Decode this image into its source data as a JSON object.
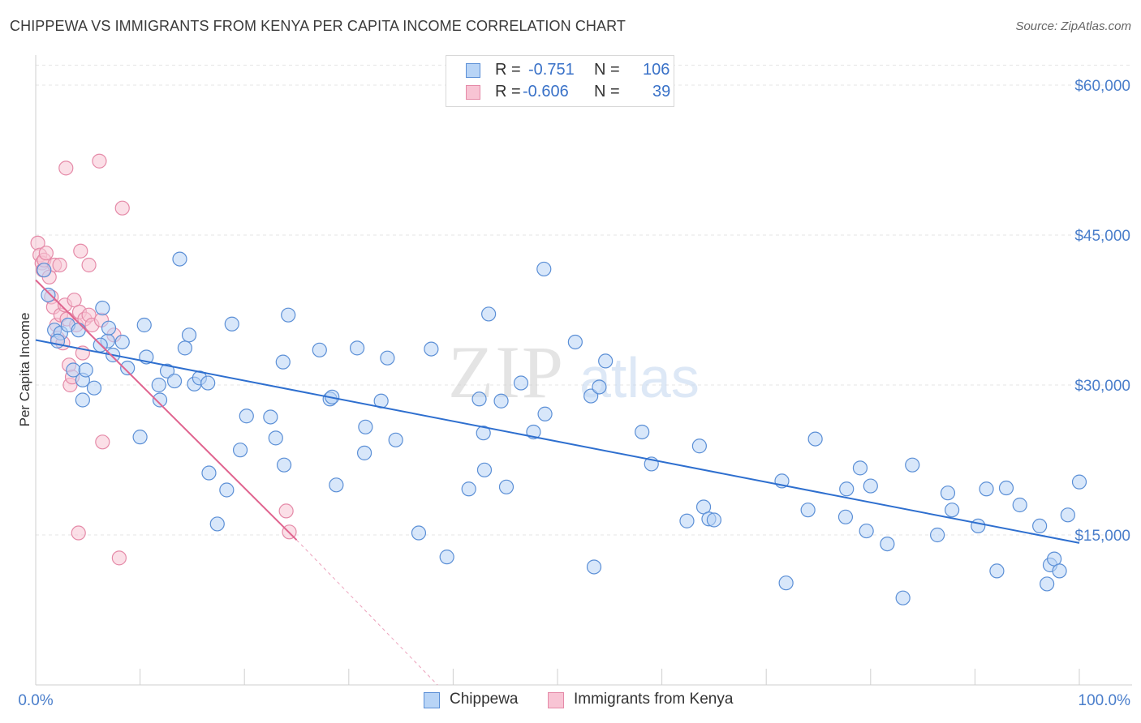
{
  "header": {
    "title": "CHIPPEWA VS IMMIGRANTS FROM KENYA PER CAPITA INCOME CORRELATION CHART",
    "source": "Source: ZipAtlas.com"
  },
  "legend": {
    "rows": [
      {
        "r_label": "R =",
        "r_value": "-0.751",
        "n_label": "N =",
        "n_value": "106"
      },
      {
        "r_label": "R =",
        "r_value": "-0.606",
        "n_label": "N =",
        "n_value": "39"
      }
    ]
  },
  "bottom_legend": [
    "Chippewa",
    "Immigrants from Kenya"
  ],
  "watermark": {
    "zip": "ZIP",
    "atlas": "atlas"
  },
  "colors": {
    "blue_fill": "#b8d4f6",
    "blue_stroke": "#5b8fd6",
    "blue_line": "#2e6fcf",
    "pink_fill": "#f8c4d4",
    "pink_stroke": "#e58aa8",
    "pink_line": "#e0648f",
    "axis_label": "#4a7ecb",
    "grid": "#e5e5e5"
  },
  "chart_data": {
    "type": "scatter",
    "title": "CHIPPEWA VS IMMIGRANTS FROM KENYA PER CAPITA INCOME CORRELATION CHART",
    "xlabel": "",
    "ylabel": "Per Capita Income",
    "xlim": [
      0,
      100
    ],
    "ylim": [
      0,
      63000
    ],
    "x_tick_labels": [
      "0.0%",
      "100.0%"
    ],
    "y_ticks": [
      15000,
      30000,
      45000,
      60000
    ],
    "y_tick_labels": [
      "$15,000",
      "$30,000",
      "$45,000",
      "$60,000"
    ],
    "grid": true,
    "legend_position": "top-center",
    "series": [
      {
        "name": "Chippewa",
        "r": -0.751,
        "n": 106,
        "trend": {
          "x": [
            0,
            100
          ],
          "y": [
            34500,
            14200
          ]
        },
        "points": [
          [
            0.8,
            41500
          ],
          [
            1.2,
            39000
          ],
          [
            1.8,
            35500
          ],
          [
            2.4,
            35200
          ],
          [
            3.1,
            36000
          ],
          [
            3.6,
            31500
          ],
          [
            4.1,
            35500
          ],
          [
            4.5,
            30500
          ],
          [
            4.5,
            28500
          ],
          [
            4.8,
            31500
          ],
          [
            6.4,
            37700
          ],
          [
            6.9,
            34400
          ],
          [
            7.0,
            35700
          ],
          [
            7.4,
            33000
          ],
          [
            8.3,
            34300
          ],
          [
            8.8,
            31700
          ],
          [
            10.0,
            24800
          ],
          [
            10.4,
            36000
          ],
          [
            10.6,
            32800
          ],
          [
            11.8,
            30000
          ],
          [
            11.9,
            28500
          ],
          [
            12.6,
            31400
          ],
          [
            13.3,
            30400
          ],
          [
            13.8,
            42600
          ],
          [
            14.3,
            33700
          ],
          [
            14.7,
            35000
          ],
          [
            15.2,
            30100
          ],
          [
            15.7,
            30700
          ],
          [
            16.5,
            30200
          ],
          [
            16.6,
            21200
          ],
          [
            17.4,
            16100
          ],
          [
            18.3,
            19500
          ],
          [
            18.8,
            36100
          ],
          [
            19.6,
            23500
          ],
          [
            20.2,
            26900
          ],
          [
            22.5,
            26800
          ],
          [
            23.0,
            24700
          ],
          [
            23.7,
            32300
          ],
          [
            23.8,
            22000
          ],
          [
            24.2,
            37000
          ],
          [
            27.2,
            33500
          ],
          [
            28.2,
            28600
          ],
          [
            28.4,
            28800
          ],
          [
            28.8,
            20000
          ],
          [
            30.8,
            33700
          ],
          [
            31.6,
            25800
          ],
          [
            31.5,
            23200
          ],
          [
            33.1,
            28400
          ],
          [
            33.7,
            32700
          ],
          [
            34.5,
            24500
          ],
          [
            36.7,
            15200
          ],
          [
            37.9,
            33600
          ],
          [
            39.4,
            12800
          ],
          [
            41.5,
            19600
          ],
          [
            42.5,
            28600
          ],
          [
            42.9,
            25200
          ],
          [
            43.0,
            21500
          ],
          [
            43.4,
            37100
          ],
          [
            44.6,
            28400
          ],
          [
            45.1,
            19800
          ],
          [
            46.5,
            30200
          ],
          [
            47.7,
            25300
          ],
          [
            48.7,
            41600
          ],
          [
            48.8,
            27100
          ],
          [
            51.7,
            34300
          ],
          [
            53.2,
            28900
          ],
          [
            53.5,
            11800
          ],
          [
            54.0,
            29800
          ],
          [
            54.6,
            32400
          ],
          [
            58.1,
            25300
          ],
          [
            59.0,
            22100
          ],
          [
            62.4,
            16400
          ],
          [
            63.6,
            23900
          ],
          [
            64.0,
            17800
          ],
          [
            64.5,
            16600
          ],
          [
            65.0,
            16500
          ],
          [
            71.5,
            20400
          ],
          [
            71.9,
            10200
          ],
          [
            74.0,
            17500
          ],
          [
            74.7,
            24600
          ],
          [
            77.6,
            16800
          ],
          [
            77.7,
            19600
          ],
          [
            79.0,
            21700
          ],
          [
            79.6,
            15400
          ],
          [
            80.0,
            19900
          ],
          [
            81.6,
            14100
          ],
          [
            83.1,
            8700
          ],
          [
            84.0,
            22000
          ],
          [
            86.4,
            15000
          ],
          [
            87.4,
            19200
          ],
          [
            87.8,
            17500
          ],
          [
            90.3,
            15900
          ],
          [
            91.1,
            19600
          ],
          [
            92.1,
            11400
          ],
          [
            93.0,
            19700
          ],
          [
            94.3,
            18000
          ],
          [
            96.2,
            15900
          ],
          [
            96.9,
            10100
          ],
          [
            97.2,
            12000
          ],
          [
            97.6,
            12600
          ],
          [
            98.1,
            11400
          ],
          [
            98.9,
            17000
          ],
          [
            100.0,
            20300
          ],
          [
            2.1,
            34400
          ],
          [
            6.2,
            34000
          ],
          [
            5.6,
            29700
          ]
        ]
      },
      {
        "name": "Immigrants from Kenya",
        "r": -0.606,
        "n": 39,
        "trend": {
          "x": [
            0,
            25
          ],
          "y": [
            40500,
            14500
          ]
        },
        "trend_dashed": {
          "x": [
            25,
            38.5
          ],
          "y": [
            14500,
            0
          ]
        },
        "points": [
          [
            0.2,
            44200
          ],
          [
            0.4,
            43000
          ],
          [
            0.6,
            42200
          ],
          [
            0.7,
            41500
          ],
          [
            0.8,
            42500
          ],
          [
            1.0,
            43200
          ],
          [
            1.3,
            40800
          ],
          [
            1.5,
            38800
          ],
          [
            1.7,
            37800
          ],
          [
            1.8,
            42000
          ],
          [
            2.0,
            36000
          ],
          [
            2.1,
            34700
          ],
          [
            2.3,
            42000
          ],
          [
            2.4,
            37000
          ],
          [
            2.6,
            34200
          ],
          [
            2.8,
            38000
          ],
          [
            3.0,
            36600
          ],
          [
            3.2,
            32000
          ],
          [
            3.3,
            30000
          ],
          [
            3.5,
            30800
          ],
          [
            3.7,
            38500
          ],
          [
            3.9,
            36000
          ],
          [
            4.1,
            15200
          ],
          [
            4.2,
            37300
          ],
          [
            4.3,
            43400
          ],
          [
            4.5,
            33200
          ],
          [
            4.7,
            36600
          ],
          [
            5.1,
            37000
          ],
          [
            5.4,
            36000
          ],
          [
            6.1,
            52400
          ],
          [
            6.3,
            36500
          ],
          [
            6.4,
            24300
          ],
          [
            7.5,
            35000
          ],
          [
            8.0,
            12700
          ],
          [
            8.3,
            47700
          ],
          [
            24.0,
            17400
          ],
          [
            24.3,
            15300
          ],
          [
            2.9,
            51700
          ],
          [
            5.1,
            42000
          ]
        ]
      }
    ]
  }
}
